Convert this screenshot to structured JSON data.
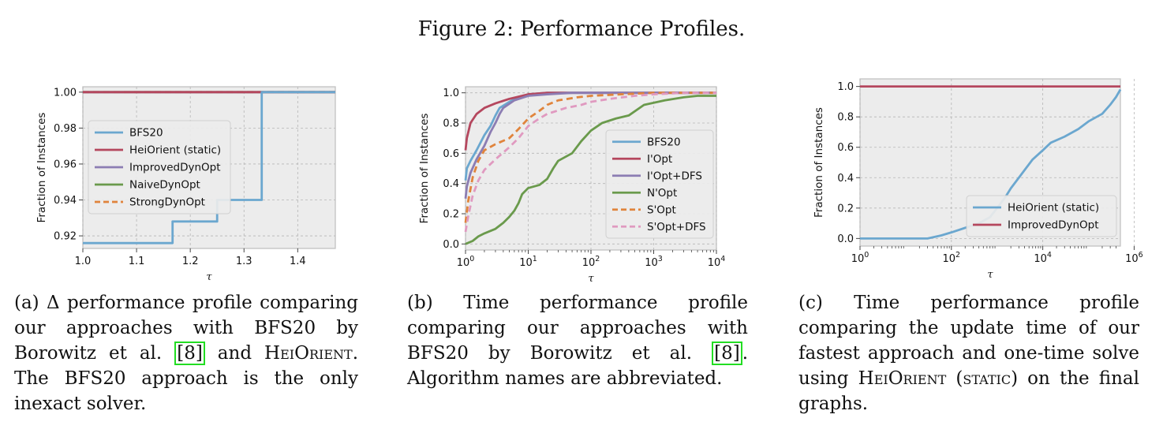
{
  "figure": {
    "title": "Figure 2: Performance Profiles.",
    "captions": [
      {
        "label": "(a)",
        "parts": [
          "Δ performance profile comparing our approaches with BFS20 by Borowitz et al. ",
          "[8]",
          " and ",
          "HeiOrient",
          ". The BFS20 approach is the only inexact solver."
        ]
      },
      {
        "label": "(b)",
        "parts": [
          "Time performance profile comparing our approaches with BFS20 by Borowitz et al. ",
          "[8]",
          ". Algorithm names are abbreviated."
        ]
      },
      {
        "label": "(c)",
        "parts": [
          "Time performance profile comparing the update time of our fastest approach and one-time solve using ",
          "HeiOrient",
          " (",
          "static",
          ") on the final graphs."
        ]
      }
    ]
  },
  "colors": {
    "blue": "#6ba7cf",
    "red": "#b5475e",
    "purple": "#8c7db3",
    "green": "#6a9a4c",
    "orange": "#e0843c",
    "pink": "#e09ac0",
    "panel_bg": "#ececec",
    "grid": "#b5b5b5"
  },
  "chart_data": [
    {
      "type": "line",
      "xlabel": "τ",
      "ylabel": "Fraction of Instances",
      "xlim": [
        1.0,
        1.47
      ],
      "ylim": [
        0.913,
        1.003
      ],
      "xscale": "linear",
      "xticks": [
        1.0,
        1.1,
        1.2,
        1.3,
        1.4
      ],
      "xticklabels": [
        "1.0",
        "1.1",
        "1.2",
        "1.3",
        "1.4"
      ],
      "yticks": [
        0.92,
        0.94,
        0.96,
        0.98,
        1.0
      ],
      "yticklabels": [
        "0.92",
        "0.94",
        "0.96",
        "0.98",
        "1.00"
      ],
      "grid": true,
      "legend_position": "center-left",
      "series": [
        {
          "name": "BFS20",
          "color": "blue",
          "dash": false,
          "step": true,
          "points": [
            [
              1.0,
              0.916
            ],
            [
              1.167,
              0.916
            ],
            [
              1.167,
              0.928
            ],
            [
              1.25,
              0.928
            ],
            [
              1.25,
              0.94
            ],
            [
              1.333,
              0.94
            ],
            [
              1.333,
              1.0
            ],
            [
              1.47,
              1.0
            ]
          ]
        },
        {
          "name": "HeiOrient (static)",
          "color": "red",
          "dash": false,
          "points": [
            [
              1.0,
              1.0
            ],
            [
              1.47,
              1.0
            ]
          ]
        },
        {
          "name": "ImprovedDynOpt",
          "color": "purple",
          "dash": false,
          "points": [
            [
              1.0,
              1.0
            ],
            [
              1.47,
              1.0
            ]
          ]
        },
        {
          "name": "NaiveDynOpt",
          "color": "green",
          "dash": false,
          "points": [
            [
              1.0,
              1.0
            ],
            [
              1.47,
              1.0
            ]
          ]
        },
        {
          "name": "StrongDynOpt",
          "color": "orange",
          "dash": true,
          "points": [
            [
              1.0,
              1.0
            ],
            [
              1.47,
              1.0
            ]
          ]
        }
      ]
    },
    {
      "type": "line",
      "xlabel": "τ",
      "ylabel": "Fraction of Instances",
      "xlim": [
        1,
        10000
      ],
      "ylim": [
        -0.04,
        1.04
      ],
      "xscale": "log",
      "xticks": [
        1,
        10,
        100,
        1000,
        10000
      ],
      "xticklabels": [
        "10^0",
        "10^1",
        "10^2",
        "10^3",
        "10^4"
      ],
      "yticks": [
        0.0,
        0.2,
        0.4,
        0.6,
        0.8,
        1.0
      ],
      "yticklabels": [
        "0.0",
        "0.2",
        "0.4",
        "0.6",
        "0.8",
        "1.0"
      ],
      "grid": true,
      "legend_position": "lower-right",
      "series": [
        {
          "name": "BFS20",
          "color": "blue",
          "dash": false,
          "points": [
            [
              1,
              0.42
            ],
            [
              1.05,
              0.5
            ],
            [
              1.2,
              0.55
            ],
            [
              1.5,
              0.62
            ],
            [
              2,
              0.72
            ],
            [
              2.5,
              0.78
            ],
            [
              3,
              0.85
            ],
            [
              3.5,
              0.9
            ],
            [
              5,
              0.94
            ],
            [
              7,
              0.97
            ],
            [
              10,
              0.99
            ],
            [
              20,
              1.0
            ],
            [
              10000,
              1.0
            ]
          ]
        },
        {
          "name": "I'Opt",
          "color": "red",
          "dash": false,
          "points": [
            [
              1,
              0.62
            ],
            [
              1.05,
              0.7
            ],
            [
              1.2,
              0.8
            ],
            [
              1.5,
              0.86
            ],
            [
              2,
              0.9
            ],
            [
              3,
              0.93
            ],
            [
              5,
              0.96
            ],
            [
              8,
              0.98
            ],
            [
              10,
              0.99
            ],
            [
              20,
              1.0
            ],
            [
              10000,
              1.0
            ]
          ]
        },
        {
          "name": "I'Opt+DFS",
          "color": "purple",
          "dash": false,
          "points": [
            [
              1,
              0.3
            ],
            [
              1.05,
              0.38
            ],
            [
              1.2,
              0.47
            ],
            [
              1.5,
              0.56
            ],
            [
              2,
              0.65
            ],
            [
              2.5,
              0.74
            ],
            [
              3,
              0.8
            ],
            [
              3.5,
              0.86
            ],
            [
              4,
              0.9
            ],
            [
              6,
              0.95
            ],
            [
              10,
              0.98
            ],
            [
              20,
              0.99
            ],
            [
              50,
              1.0
            ],
            [
              10000,
              1.0
            ]
          ]
        },
        {
          "name": "N'Opt",
          "color": "green",
          "dash": false,
          "points": [
            [
              1,
              0.0
            ],
            [
              1.3,
              0.02
            ],
            [
              1.6,
              0.05
            ],
            [
              2,
              0.07
            ],
            [
              3,
              0.1
            ],
            [
              4,
              0.14
            ],
            [
              5,
              0.18
            ],
            [
              6,
              0.22
            ],
            [
              7,
              0.27
            ],
            [
              8,
              0.33
            ],
            [
              10,
              0.37
            ],
            [
              15,
              0.39
            ],
            [
              20,
              0.43
            ],
            [
              25,
              0.5
            ],
            [
              30,
              0.55
            ],
            [
              50,
              0.6
            ],
            [
              70,
              0.68
            ],
            [
              100,
              0.75
            ],
            [
              150,
              0.8
            ],
            [
              250,
              0.83
            ],
            [
              400,
              0.85
            ],
            [
              700,
              0.92
            ],
            [
              1500,
              0.95
            ],
            [
              3000,
              0.97
            ],
            [
              5000,
              0.98
            ],
            [
              10000,
              0.98
            ]
          ]
        },
        {
          "name": "S'Opt",
          "color": "orange",
          "dash": true,
          "points": [
            [
              1,
              0.14
            ],
            [
              1.1,
              0.28
            ],
            [
              1.3,
              0.44
            ],
            [
              1.6,
              0.55
            ],
            [
              2,
              0.62
            ],
            [
              3,
              0.66
            ],
            [
              5,
              0.7
            ],
            [
              7,
              0.76
            ],
            [
              10,
              0.83
            ],
            [
              15,
              0.88
            ],
            [
              20,
              0.92
            ],
            [
              30,
              0.95
            ],
            [
              60,
              0.97
            ],
            [
              100,
              0.98
            ],
            [
              300,
              0.99
            ],
            [
              1000,
              1.0
            ],
            [
              10000,
              1.0
            ]
          ]
        },
        {
          "name": "S'Opt+DFS",
          "color": "pink",
          "dash": true,
          "points": [
            [
              1,
              0.08
            ],
            [
              1.1,
              0.18
            ],
            [
              1.3,
              0.32
            ],
            [
              1.6,
              0.42
            ],
            [
              2,
              0.49
            ],
            [
              3,
              0.56
            ],
            [
              5,
              0.64
            ],
            [
              7,
              0.7
            ],
            [
              10,
              0.78
            ],
            [
              15,
              0.83
            ],
            [
              20,
              0.86
            ],
            [
              40,
              0.9
            ],
            [
              70,
              0.92
            ],
            [
              100,
              0.94
            ],
            [
              200,
              0.96
            ],
            [
              500,
              0.98
            ],
            [
              1000,
              0.99
            ],
            [
              3000,
              1.0
            ],
            [
              10000,
              1.0
            ]
          ]
        }
      ]
    },
    {
      "type": "line",
      "xlabel": "τ",
      "ylabel": "Fraction of Instances",
      "xlim": [
        1,
        500000
      ],
      "ylim": [
        -0.05,
        1.05
      ],
      "xscale": "log",
      "xticks": [
        1,
        100,
        10000,
        1000000
      ],
      "xticklabels": [
        "10^0",
        "10^2",
        "10^4",
        "10^6"
      ],
      "yticks": [
        0.0,
        0.2,
        0.4,
        0.6,
        0.8,
        1.0
      ],
      "yticklabels": [
        "0.0",
        "0.2",
        "0.4",
        "0.6",
        "0.8",
        "1.0"
      ],
      "grid": true,
      "legend_position": "lower-right",
      "series": [
        {
          "name": "HeiOrient (static)",
          "color": "blue",
          "dash": false,
          "points": [
            [
              1,
              0.0
            ],
            [
              30,
              0.0
            ],
            [
              60,
              0.02
            ],
            [
              100,
              0.04
            ],
            [
              200,
              0.07
            ],
            [
              400,
              0.1
            ],
            [
              700,
              0.14
            ],
            [
              1000,
              0.2
            ],
            [
              1500,
              0.27
            ],
            [
              2000,
              0.33
            ],
            [
              3000,
              0.4
            ],
            [
              4000,
              0.45
            ],
            [
              6000,
              0.52
            ],
            [
              10000,
              0.58
            ],
            [
              15000,
              0.63
            ],
            [
              30000,
              0.67
            ],
            [
              60000,
              0.72
            ],
            [
              100000,
              0.77
            ],
            [
              200000,
              0.82
            ],
            [
              300000,
              0.88
            ],
            [
              400000,
              0.93
            ],
            [
              500000,
              0.98
            ]
          ]
        },
        {
          "name": "ImprovedDynOpt",
          "color": "red",
          "dash": false,
          "points": [
            [
              1,
              1.0
            ],
            [
              500000,
              1.0
            ]
          ]
        }
      ]
    }
  ]
}
